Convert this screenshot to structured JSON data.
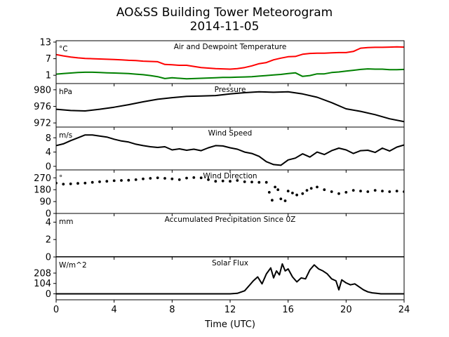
{
  "figure": {
    "title_line1": "AO&SS Building Tower Meteorogram",
    "title_line2": "2014-11-05",
    "xlabel": "Time (UTC)"
  },
  "chart_data": [
    {
      "type": "line",
      "title": "Air and Dewpoint Temperature",
      "unit": "°C",
      "ylim": [
        -2,
        13.5
      ],
      "yticks": [
        1,
        7,
        13
      ],
      "xlim": [
        0,
        24
      ],
      "xticks": [
        0,
        4,
        8,
        12,
        16,
        20,
        24
      ],
      "series": [
        {
          "color": "#ff0000",
          "x": [
            0,
            0.5,
            1,
            1.5,
            2,
            2.5,
            3,
            3.5,
            4,
            4.5,
            5,
            5.5,
            6,
            6.5,
            7,
            7.5,
            8,
            8.5,
            9,
            9.5,
            10,
            10.5,
            11,
            11.5,
            12,
            12.5,
            13,
            13.5,
            14,
            14.5,
            15,
            15.5,
            16,
            16.5,
            17,
            17.5,
            18,
            18.5,
            19,
            19.5,
            20,
            20.5,
            21,
            21.5,
            22,
            22.5,
            23,
            23.5,
            24
          ],
          "y": [
            8.5,
            8,
            7.6,
            7.3,
            7.1,
            7,
            6.9,
            6.8,
            6.7,
            6.6,
            6.4,
            6.3,
            6.1,
            6,
            5.9,
            4.9,
            4.8,
            4.6,
            4.6,
            4.2,
            3.8,
            3.6,
            3.4,
            3.3,
            3.2,
            3.4,
            3.8,
            4.4,
            5.2,
            5.6,
            6.6,
            7.2,
            7.7,
            7.8,
            8.6,
            8.9,
            9,
            9,
            9.1,
            9.2,
            9.2,
            9.6,
            10.8,
            11,
            11.1,
            11.1,
            11.2,
            11.3,
            11.2
          ]
        },
        {
          "color": "#008000",
          "x": [
            0,
            0.5,
            1,
            1.5,
            2,
            2.5,
            3,
            3.5,
            4,
            4.5,
            5,
            5.5,
            6,
            6.5,
            7,
            7.5,
            8,
            8.5,
            9,
            9.5,
            10,
            10.5,
            11,
            11.5,
            12,
            12.5,
            13,
            13.5,
            14,
            14.5,
            15,
            15.5,
            16,
            16.5,
            17,
            17.5,
            18,
            18.5,
            19,
            19.5,
            20,
            20.5,
            21,
            21.5,
            22,
            22.5,
            23,
            23.5,
            24
          ],
          "y": [
            1.4,
            1.6,
            1.8,
            2,
            2.1,
            2.1,
            2,
            1.9,
            1.8,
            1.7,
            1.6,
            1.4,
            1.2,
            0.9,
            0.5,
            -0.2,
            0.1,
            -0.1,
            -0.3,
            -0.2,
            -0.1,
            0,
            0.1,
            0.2,
            0.2,
            0.3,
            0.4,
            0.5,
            0.7,
            0.9,
            1.1,
            1.3,
            1.6,
            1.9,
            0.6,
            0.9,
            1.5,
            1.5,
            2,
            2.2,
            2.5,
            2.8,
            3.1,
            3.3,
            3.2,
            3.2,
            3,
            3,
            3.1
          ]
        }
      ]
    },
    {
      "type": "line",
      "title": "Pressure",
      "unit": "hPa",
      "ylim": [
        971,
        981.5
      ],
      "yticks": [
        972,
        976,
        980
      ],
      "xlim": [
        0,
        24
      ],
      "series": [
        {
          "color": "#000000",
          "x": [
            0,
            1,
            2,
            3,
            4,
            5,
            6,
            7,
            8,
            9,
            10,
            11,
            12,
            13,
            14,
            15,
            16,
            17,
            18,
            19,
            20,
            21,
            22,
            23,
            24
          ],
          "y": [
            975.3,
            975,
            974.9,
            975.3,
            975.8,
            976.4,
            977.1,
            977.7,
            978.1,
            978.4,
            978.5,
            978.6,
            979,
            979.3,
            979.5,
            979.4,
            979.5,
            979,
            978.2,
            976.9,
            975.4,
            974.8,
            974,
            973,
            972.3
          ]
        }
      ]
    },
    {
      "type": "line",
      "title": "Wind Speed",
      "unit": "m/s",
      "ylim": [
        -1,
        11
      ],
      "yticks": [
        0,
        4,
        8
      ],
      "xlim": [
        0,
        24
      ],
      "series": [
        {
          "color": "#000000",
          "x": [
            0,
            0.5,
            1,
            1.5,
            2,
            2.5,
            3,
            3.5,
            4,
            4.5,
            5,
            5.5,
            6,
            6.5,
            7,
            7.5,
            8,
            8.5,
            9,
            9.5,
            10,
            10.5,
            11,
            11.5,
            12,
            12.5,
            13,
            13.5,
            14,
            14.5,
            15,
            15.5,
            16,
            16.5,
            17,
            17.5,
            18,
            18.5,
            19,
            19.5,
            20,
            20.5,
            21,
            21.5,
            22,
            22.5,
            23,
            23.5,
            24
          ],
          "y": [
            5.8,
            6.3,
            7.2,
            8,
            8.8,
            8.8,
            8.5,
            8.2,
            7.6,
            7.1,
            6.8,
            6.2,
            5.8,
            5.5,
            5.3,
            5.5,
            4.6,
            4.9,
            4.5,
            4.8,
            4.4,
            5.2,
            5.8,
            5.7,
            5.2,
            4.8,
            4,
            3.6,
            2.8,
            1.3,
            0.5,
            0.3,
            1.8,
            2.3,
            3.5,
            2.6,
            4,
            3.3,
            4.4,
            5.1,
            4.6,
            3.6,
            4.4,
            4.5,
            3.9,
            5.1,
            4.3,
            5.4,
            6
          ]
        }
      ]
    },
    {
      "type": "scatter",
      "title": "Wind Direction",
      "unit": "°",
      "ylim": [
        0,
        330
      ],
      "yticks": [
        0,
        90,
        180,
        270
      ],
      "xlim": [
        0,
        24
      ],
      "series": [
        {
          "color": "#000000",
          "x": [
            0,
            0.5,
            1,
            1.5,
            2,
            2.5,
            3,
            3.5,
            4,
            4.5,
            5,
            5.5,
            6,
            6.5,
            7,
            7.5,
            8,
            8.5,
            9,
            9.5,
            10,
            10.5,
            11,
            11.5,
            12,
            12.5,
            13,
            13.5,
            14,
            14.5,
            14.7,
            14.9,
            15.1,
            15.3,
            15.5,
            15.8,
            16,
            16.3,
            16.6,
            17,
            17.3,
            17.6,
            18,
            18.5,
            19,
            19.5,
            20,
            20.5,
            21,
            21.5,
            22,
            22.5,
            23,
            23.5,
            24
          ],
          "y": [
            230,
            222,
            224,
            228,
            230,
            236,
            240,
            244,
            248,
            250,
            252,
            256,
            262,
            266,
            270,
            266,
            262,
            256,
            268,
            272,
            270,
            256,
            244,
            246,
            244,
            250,
            240,
            238,
            236,
            236,
            160,
            100,
            200,
            180,
            110,
            96,
            170,
            155,
            140,
            150,
            175,
            190,
            200,
            180,
            165,
            150,
            160,
            175,
            170,
            165,
            175,
            170,
            165,
            170,
            165
          ]
        }
      ]
    },
    {
      "type": "area",
      "title": "Accumulated Precipitation Since 0Z",
      "unit": "mm",
      "ylim": [
        0,
        5
      ],
      "yticks": [
        0,
        2,
        4
      ],
      "xlim": [
        0,
        24
      ],
      "series": [
        {
          "color": "#000000",
          "x": [
            0,
            24
          ],
          "y": [
            0,
            0
          ]
        }
      ]
    },
    {
      "type": "line",
      "title": "Solar Flux",
      "unit": "W/m^2",
      "ylim": [
        -60,
        370
      ],
      "yticks": [
        0,
        104,
        208
      ],
      "xlim": [
        0,
        24
      ],
      "series": [
        {
          "color": "#000000",
          "x": [
            0,
            1,
            2,
            3,
            4,
            5,
            6,
            7,
            8,
            9,
            10,
            11,
            12,
            12.5,
            13,
            13.3,
            13.6,
            13.9,
            14.2,
            14.5,
            14.8,
            15,
            15.2,
            15.4,
            15.6,
            15.8,
            16,
            16.3,
            16.6,
            16.9,
            17.2,
            17.5,
            17.8,
            18.1,
            18.4,
            18.7,
            19,
            19.3,
            19.5,
            19.7,
            20,
            20.3,
            20.6,
            20.9,
            21.2,
            21.5,
            21.8,
            22.1,
            22.4,
            22.7,
            23,
            23.5,
            24
          ],
          "y": [
            0,
            0,
            0,
            0,
            0,
            0,
            0,
            0,
            0,
            0,
            0,
            0,
            0,
            5,
            30,
            80,
            130,
            170,
            100,
            200,
            260,
            160,
            230,
            190,
            300,
            230,
            250,
            170,
            120,
            160,
            150,
            240,
            290,
            250,
            230,
            200,
            150,
            130,
            40,
            140,
            110,
            90,
            100,
            70,
            40,
            20,
            10,
            5,
            0,
            0,
            0,
            0,
            0
          ]
        }
      ]
    }
  ]
}
